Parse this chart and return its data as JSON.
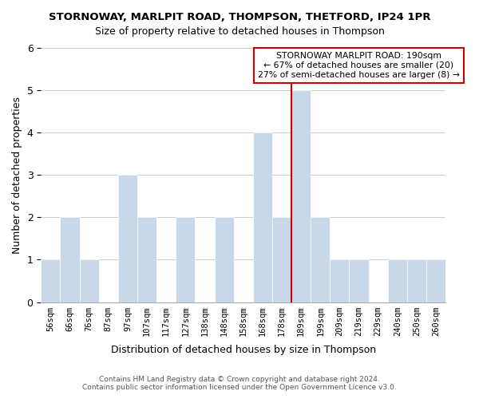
{
  "title": "STORNOWAY, MARLPIT ROAD, THOMPSON, THETFORD, IP24 1PR",
  "subtitle": "Size of property relative to detached houses in Thompson",
  "xlabel": "Distribution of detached houses by size in Thompson",
  "ylabel": "Number of detached properties",
  "bar_labels": [
    "56sqm",
    "66sqm",
    "76sqm",
    "87sqm",
    "97sqm",
    "107sqm",
    "117sqm",
    "127sqm",
    "138sqm",
    "148sqm",
    "158sqm",
    "168sqm",
    "178sqm",
    "189sqm",
    "199sqm",
    "209sqm",
    "219sqm",
    "229sqm",
    "240sqm",
    "250sqm",
    "260sqm"
  ],
  "bar_values": [
    1,
    2,
    1,
    0,
    3,
    2,
    0,
    2,
    0,
    2,
    0,
    4,
    2,
    5,
    2,
    1,
    1,
    0,
    1,
    1,
    1
  ],
  "bar_color": "#c8d8e8",
  "bar_edge_color": "#ffffff",
  "subject_idx": 13,
  "subject_line_color": "#cc0000",
  "ylim": [
    0,
    6
  ],
  "yticks": [
    0,
    1,
    2,
    3,
    4,
    5,
    6
  ],
  "annotation_title": "STORNOWAY MARLPIT ROAD: 190sqm",
  "annotation_line1": "← 67% of detached houses are smaller (20)",
  "annotation_line2": "27% of semi-detached houses are larger (8) →",
  "annotation_box_color": "#ffffff",
  "annotation_box_edge_color": "#cc0000",
  "footer_line1": "Contains HM Land Registry data © Crown copyright and database right 2024.",
  "footer_line2": "Contains public sector information licensed under the Open Government Licence v3.0.",
  "bg_color": "#ffffff",
  "grid_color": "#cccccc"
}
